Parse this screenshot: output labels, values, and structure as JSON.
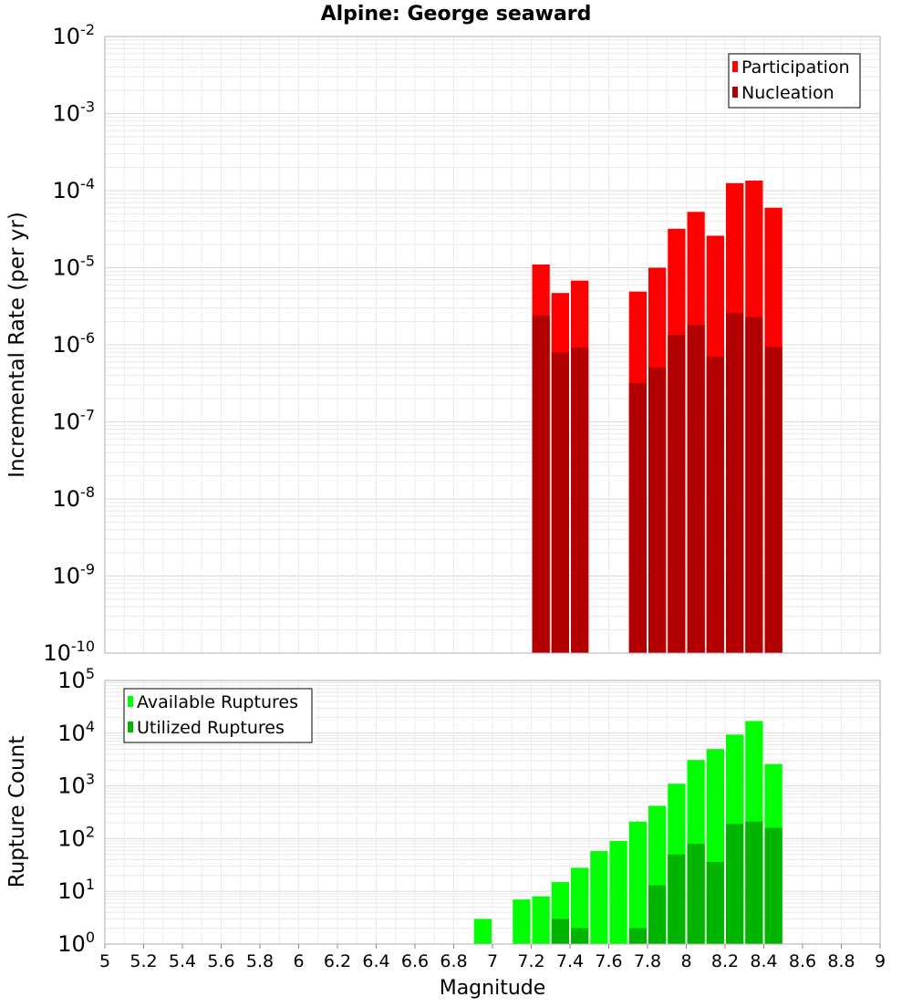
{
  "title": "Alpine: George seaward",
  "colors": {
    "participation": "#ff0000",
    "nucleation": "#b20000",
    "available": "#00ff00",
    "utilized": "#00b400",
    "grid": "#e8e8e8",
    "frame": "#b0b0b0"
  },
  "chart_data": [
    {
      "type": "bar",
      "panel": "top",
      "ylabel": "Incremental Rate (per yr)",
      "yscale": "log",
      "ylim_exponents": [
        -10,
        -2
      ],
      "y_tick_labels": [
        {
          "base": "10",
          "exp": "-2"
        },
        {
          "base": "10",
          "exp": "-3"
        },
        {
          "base": "10",
          "exp": "-4"
        },
        {
          "base": "10",
          "exp": "-5"
        },
        {
          "base": "10",
          "exp": "-6"
        },
        {
          "base": "10",
          "exp": "-7"
        },
        {
          "base": "10",
          "exp": "-8"
        },
        {
          "base": "10",
          "exp": "-9"
        },
        {
          "base": "10",
          "exp": "-10"
        }
      ],
      "legend": [
        "Participation",
        "Nucleation"
      ],
      "legend_position": "top-right",
      "overlay": true,
      "x": [
        7.25,
        7.35,
        7.45,
        7.75,
        7.85,
        7.95,
        8.05,
        8.15,
        8.25,
        8.35,
        8.45
      ],
      "series": [
        {
          "name": "Participation",
          "color_key": "participation",
          "values": [
            1.1e-05,
            4.7e-06,
            6.8e-06,
            4.9e-06,
            1e-05,
            3.2e-05,
            5.3e-05,
            2.6e-05,
            0.000125,
            0.000135,
            6e-05
          ]
        },
        {
          "name": "Nucleation",
          "color_key": "nucleation",
          "values": [
            2.4e-06,
            8e-07,
            9.2e-07,
            3.2e-07,
            5.1e-07,
            1.35e-06,
            1.8e-06,
            7e-07,
            2.6e-06,
            2.3e-06,
            9.4e-07
          ]
        }
      ]
    },
    {
      "type": "bar",
      "panel": "bottom",
      "ylabel": "Rupture Count",
      "xlabel": "Magnitude",
      "yscale": "log",
      "ylim_exponents": [
        0,
        5
      ],
      "y_tick_labels": [
        {
          "base": "10",
          "exp": "5"
        },
        {
          "base": "10",
          "exp": "4"
        },
        {
          "base": "10",
          "exp": "3"
        },
        {
          "base": "10",
          "exp": "2"
        },
        {
          "base": "10",
          "exp": "1"
        },
        {
          "base": "10",
          "exp": "0"
        }
      ],
      "legend": [
        "Available Ruptures",
        "Utilized Ruptures"
      ],
      "legend_position": "top-left",
      "overlay": true,
      "x": [
        6.65,
        6.75,
        6.85,
        6.95,
        7.05,
        7.15,
        7.25,
        7.35,
        7.45,
        7.55,
        7.65,
        7.75,
        7.85,
        7.95,
        8.05,
        8.15,
        8.25,
        8.35,
        8.45
      ],
      "series": [
        {
          "name": "Available Ruptures",
          "color_key": "available",
          "values": [
            1,
            0,
            1,
            3,
            1,
            7,
            8,
            15,
            28,
            58,
            90,
            210,
            420,
            1100,
            3100,
            5000,
            9400,
            17000,
            2600
          ]
        },
        {
          "name": "Utilized Ruptures",
          "color_key": "utilized",
          "values": [
            0,
            0,
            0,
            0,
            0,
            0,
            1,
            3,
            2,
            0,
            0,
            2,
            13,
            50,
            80,
            36,
            190,
            210,
            160
          ]
        }
      ]
    }
  ],
  "x_axis": {
    "xlim": [
      5,
      9
    ],
    "tick_values": [
      5,
      5.2,
      5.4,
      5.6,
      5.8,
      6,
      6.2,
      6.4,
      6.6,
      6.8,
      7,
      7.2,
      7.4,
      7.6,
      7.8,
      8,
      8.2,
      8.4,
      8.6,
      8.8,
      9
    ],
    "tick_labels": [
      "5",
      "5.2",
      "5.4",
      "5.6",
      "5.8",
      "6",
      "6.2",
      "6.4",
      "6.6",
      "6.8",
      "7",
      "7.2",
      "7.4",
      "7.6",
      "7.8",
      "8",
      "8.2",
      "8.4",
      "8.6",
      "8.8",
      "9"
    ]
  }
}
